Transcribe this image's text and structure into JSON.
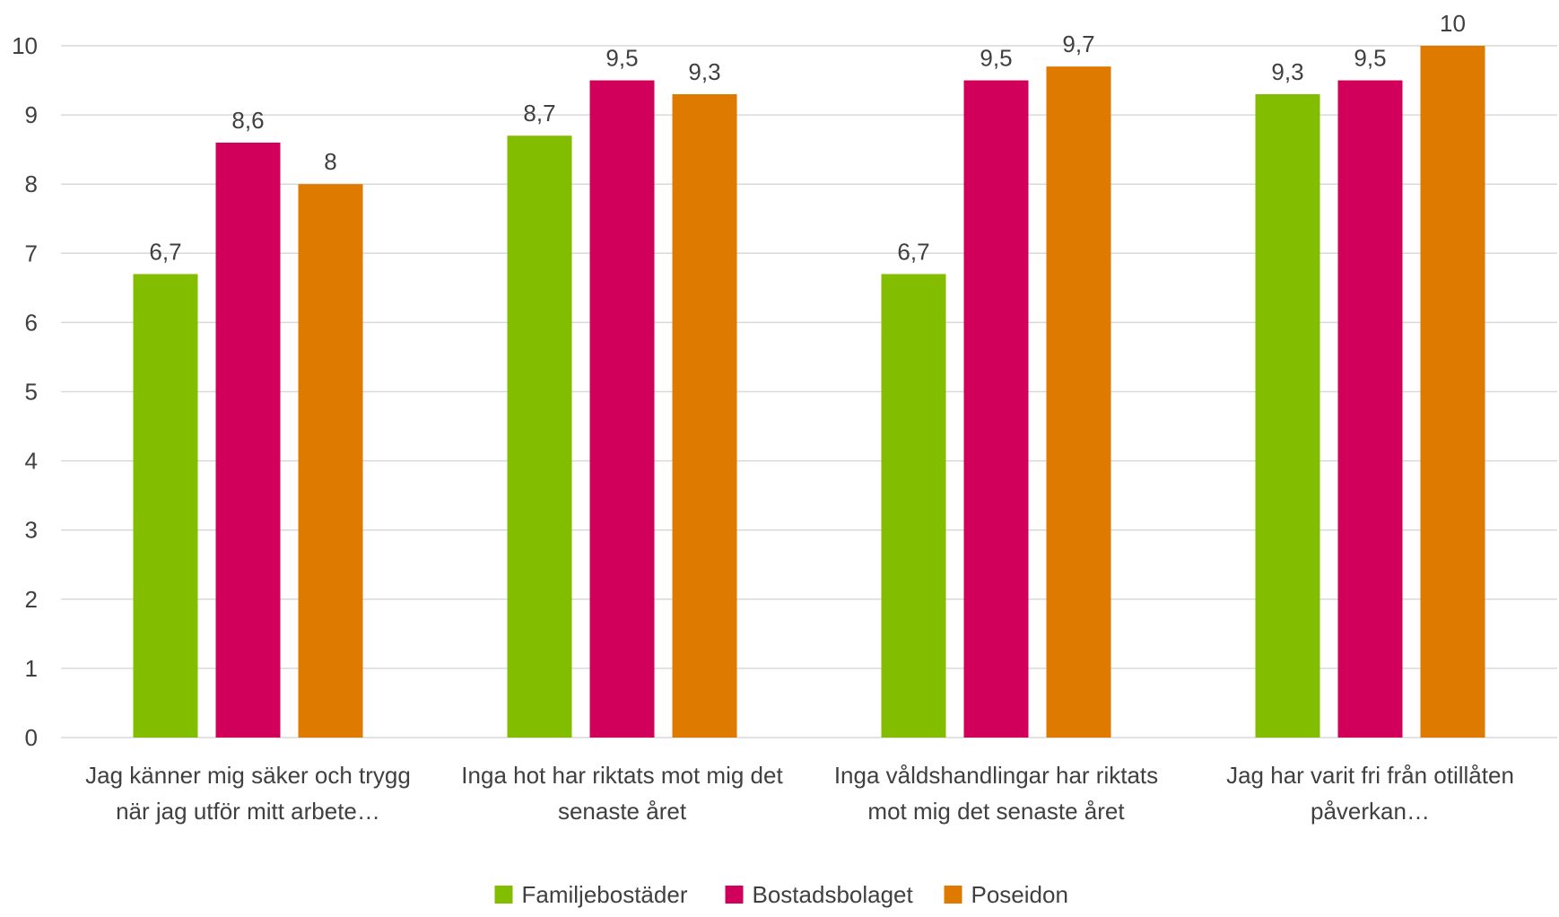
{
  "chart_data": {
    "type": "bar",
    "categories": [
      [
        "Jag känner mig säker och trygg",
        "när jag utför mitt arbete…"
      ],
      [
        "Inga hot har riktats mot mig det",
        "senaste året"
      ],
      [
        "Inga våldshandlingar har riktats",
        "mot mig det senaste året"
      ],
      [
        "Jag har varit fri från otillåten",
        "påverkan…"
      ]
    ],
    "series": [
      {
        "name": "Familjebostäder",
        "color": "#83bd00",
        "values": [
          6.7,
          8.7,
          6.7,
          9.3
        ],
        "labels": [
          "6,7",
          "8,7",
          "6,7",
          "9,3"
        ]
      },
      {
        "name": "Bostadsbolaget",
        "color": "#d1005a",
        "values": [
          8.6,
          9.5,
          9.5,
          9.5
        ],
        "labels": [
          "8,6",
          "9,5",
          "9,5",
          "9,5"
        ]
      },
      {
        "name": "Poseidon",
        "color": "#df7a00",
        "values": [
          8.0,
          9.3,
          9.7,
          10.0
        ],
        "labels": [
          "8",
          "9,3",
          "9,7",
          "10"
        ]
      }
    ],
    "ylim": [
      0,
      10
    ],
    "yticks": [
      "0",
      "1",
      "2",
      "3",
      "4",
      "5",
      "6",
      "7",
      "8",
      "9",
      "10"
    ],
    "grid": true,
    "legend_position": "bottom"
  }
}
